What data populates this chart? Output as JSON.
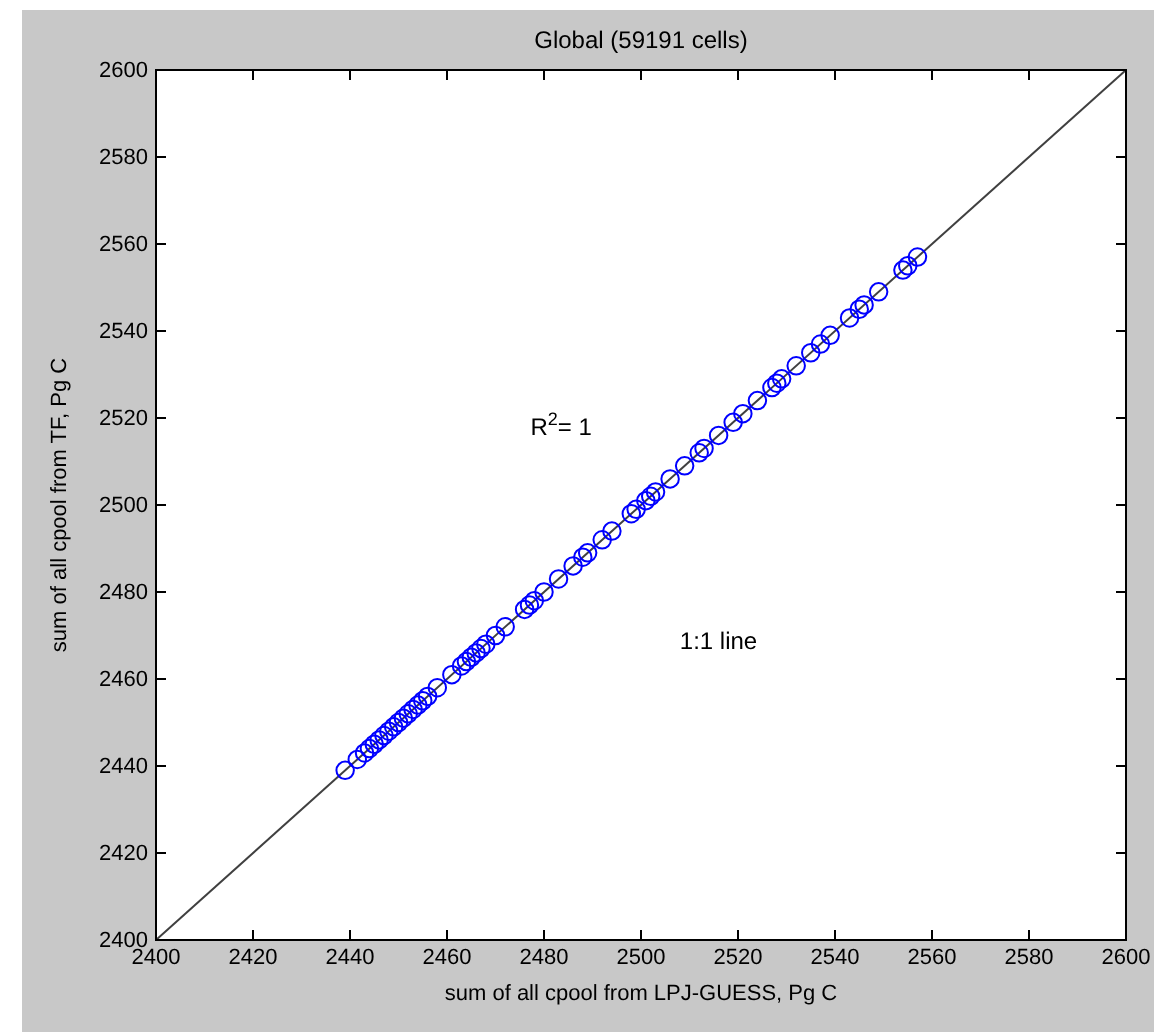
{
  "chart_data": {
    "type": "scatter",
    "title": "Global (59191 cells)",
    "xlabel": "sum of all cpool from LPJ-GUESS, Pg C",
    "ylabel": "sum of all cpool from TF, Pg C",
    "xlim": [
      2400,
      2600
    ],
    "ylim": [
      2400,
      2600
    ],
    "xticks": [
      2400,
      2420,
      2440,
      2460,
      2480,
      2500,
      2520,
      2540,
      2560,
      2580,
      2600
    ],
    "yticks": [
      2400,
      2420,
      2440,
      2460,
      2480,
      2500,
      2520,
      2540,
      2560,
      2580,
      2600
    ],
    "grid": false,
    "series": [
      {
        "type": "line",
        "color": "#404040",
        "x": [
          2400,
          2600
        ],
        "values": [
          2400,
          2600
        ]
      },
      {
        "marker": "circle",
        "color": "#0000ff",
        "x": [
          2439,
          2441.5,
          2443,
          2444,
          2445,
          2446,
          2447,
          2448,
          2449,
          2450,
          2451,
          2452,
          2453,
          2454,
          2455,
          2456,
          2458,
          2461,
          2463,
          2464,
          2465,
          2466,
          2467,
          2468,
          2470,
          2472,
          2476,
          2477,
          2478,
          2480,
          2483,
          2486,
          2488,
          2489,
          2492,
          2494,
          2498,
          2499,
          2501,
          2502,
          2503,
          2506,
          2509,
          2512,
          2513,
          2516,
          2519,
          2521,
          2524,
          2527,
          2528,
          2529,
          2532,
          2535,
          2537,
          2539,
          2543,
          2545,
          2546,
          2549,
          2554,
          2555,
          2557
        ],
        "values": [
          2439,
          2441.5,
          2443,
          2444,
          2445,
          2446,
          2447,
          2448,
          2449,
          2450,
          2451,
          2452,
          2453,
          2454,
          2455,
          2456,
          2458,
          2461,
          2463,
          2464,
          2465,
          2466,
          2467,
          2468,
          2470,
          2472,
          2476,
          2477,
          2478,
          2480,
          2483,
          2486,
          2488,
          2489,
          2492,
          2494,
          2498,
          2499,
          2501,
          2502,
          2503,
          2506,
          2509,
          2512,
          2513,
          2516,
          2519,
          2521,
          2524,
          2527,
          2528,
          2529,
          2532,
          2535,
          2537,
          2539,
          2543,
          2545,
          2546,
          2549,
          2554,
          2555,
          2557
        ]
      }
    ],
    "annotations": [
      "R$^{2}$= 1",
      "1:1 line"
    ]
  }
}
